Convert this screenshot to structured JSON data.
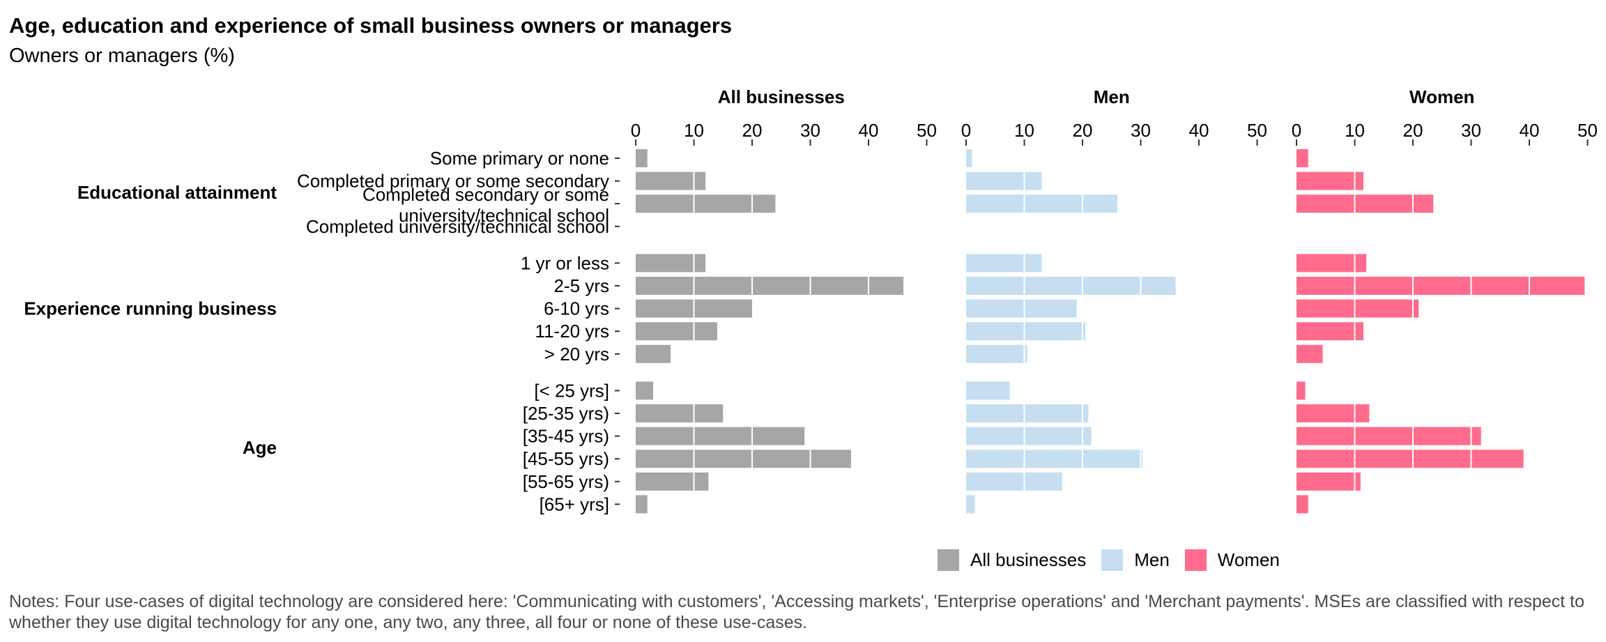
{
  "title": "Age, education and experience of small business owners or managers",
  "subtitle": "Owners or managers (%)",
  "notes": "Notes: Four use-cases of digital technology are considered here: 'Communicating with customers', 'Accessing markets', 'Enterprise operations' and 'Merchant payments'. MSEs are classified with respect to whether they use digital technology for any one, any two, any three, all four or none of these use-cases.",
  "chart_data": {
    "type": "bar",
    "orientation": "horizontal",
    "xlim": [
      0,
      50
    ],
    "xticks": [
      0,
      10,
      20,
      30,
      40,
      50
    ],
    "grid": false,
    "legend_position": "bottom",
    "groups": [
      {
        "name": "Educational attainment",
        "categories": [
          [
            "Some primary or none"
          ],
          [
            "Completed primary or some secondary"
          ],
          [
            "Completed secondary or some",
            "university/technical school"
          ],
          [
            "Completed university/technical school"
          ]
        ]
      },
      {
        "name": "Experience running business",
        "categories": [
          [
            "1 yr or less"
          ],
          [
            "2-5 yrs"
          ],
          [
            "6-10 yrs"
          ],
          [
            "11-20 yrs"
          ],
          [
            "> 20 yrs"
          ]
        ]
      },
      {
        "name": "Age",
        "categories": [
          [
            "[< 25 yrs]"
          ],
          [
            "[25-35 yrs)"
          ],
          [
            "[35-45 yrs)"
          ],
          [
            "[45-55 yrs)"
          ],
          [
            "[55-65 yrs)"
          ],
          [
            "[65+ yrs]"
          ]
        ]
      }
    ],
    "series": [
      {
        "name": "All businesses",
        "color": "#a6a6a6",
        "values": [
          2,
          12,
          24,
          0,
          12,
          46,
          20,
          14,
          6,
          3,
          15,
          29,
          37,
          12.5,
          2
        ]
      },
      {
        "name": "Men",
        "color": "#c5dff0",
        "values": [
          1,
          13,
          26,
          0,
          13,
          36,
          19,
          20.5,
          10.5,
          7.5,
          21,
          21.5,
          30.3,
          16.5,
          1.5
        ]
      },
      {
        "name": "Women",
        "color": "#ff6b8c",
        "values": [
          2,
          11.5,
          23.5,
          0,
          12,
          49.5,
          21,
          11.5,
          4.5,
          1.5,
          12.5,
          31.7,
          39,
          11,
          2
        ]
      }
    ]
  }
}
